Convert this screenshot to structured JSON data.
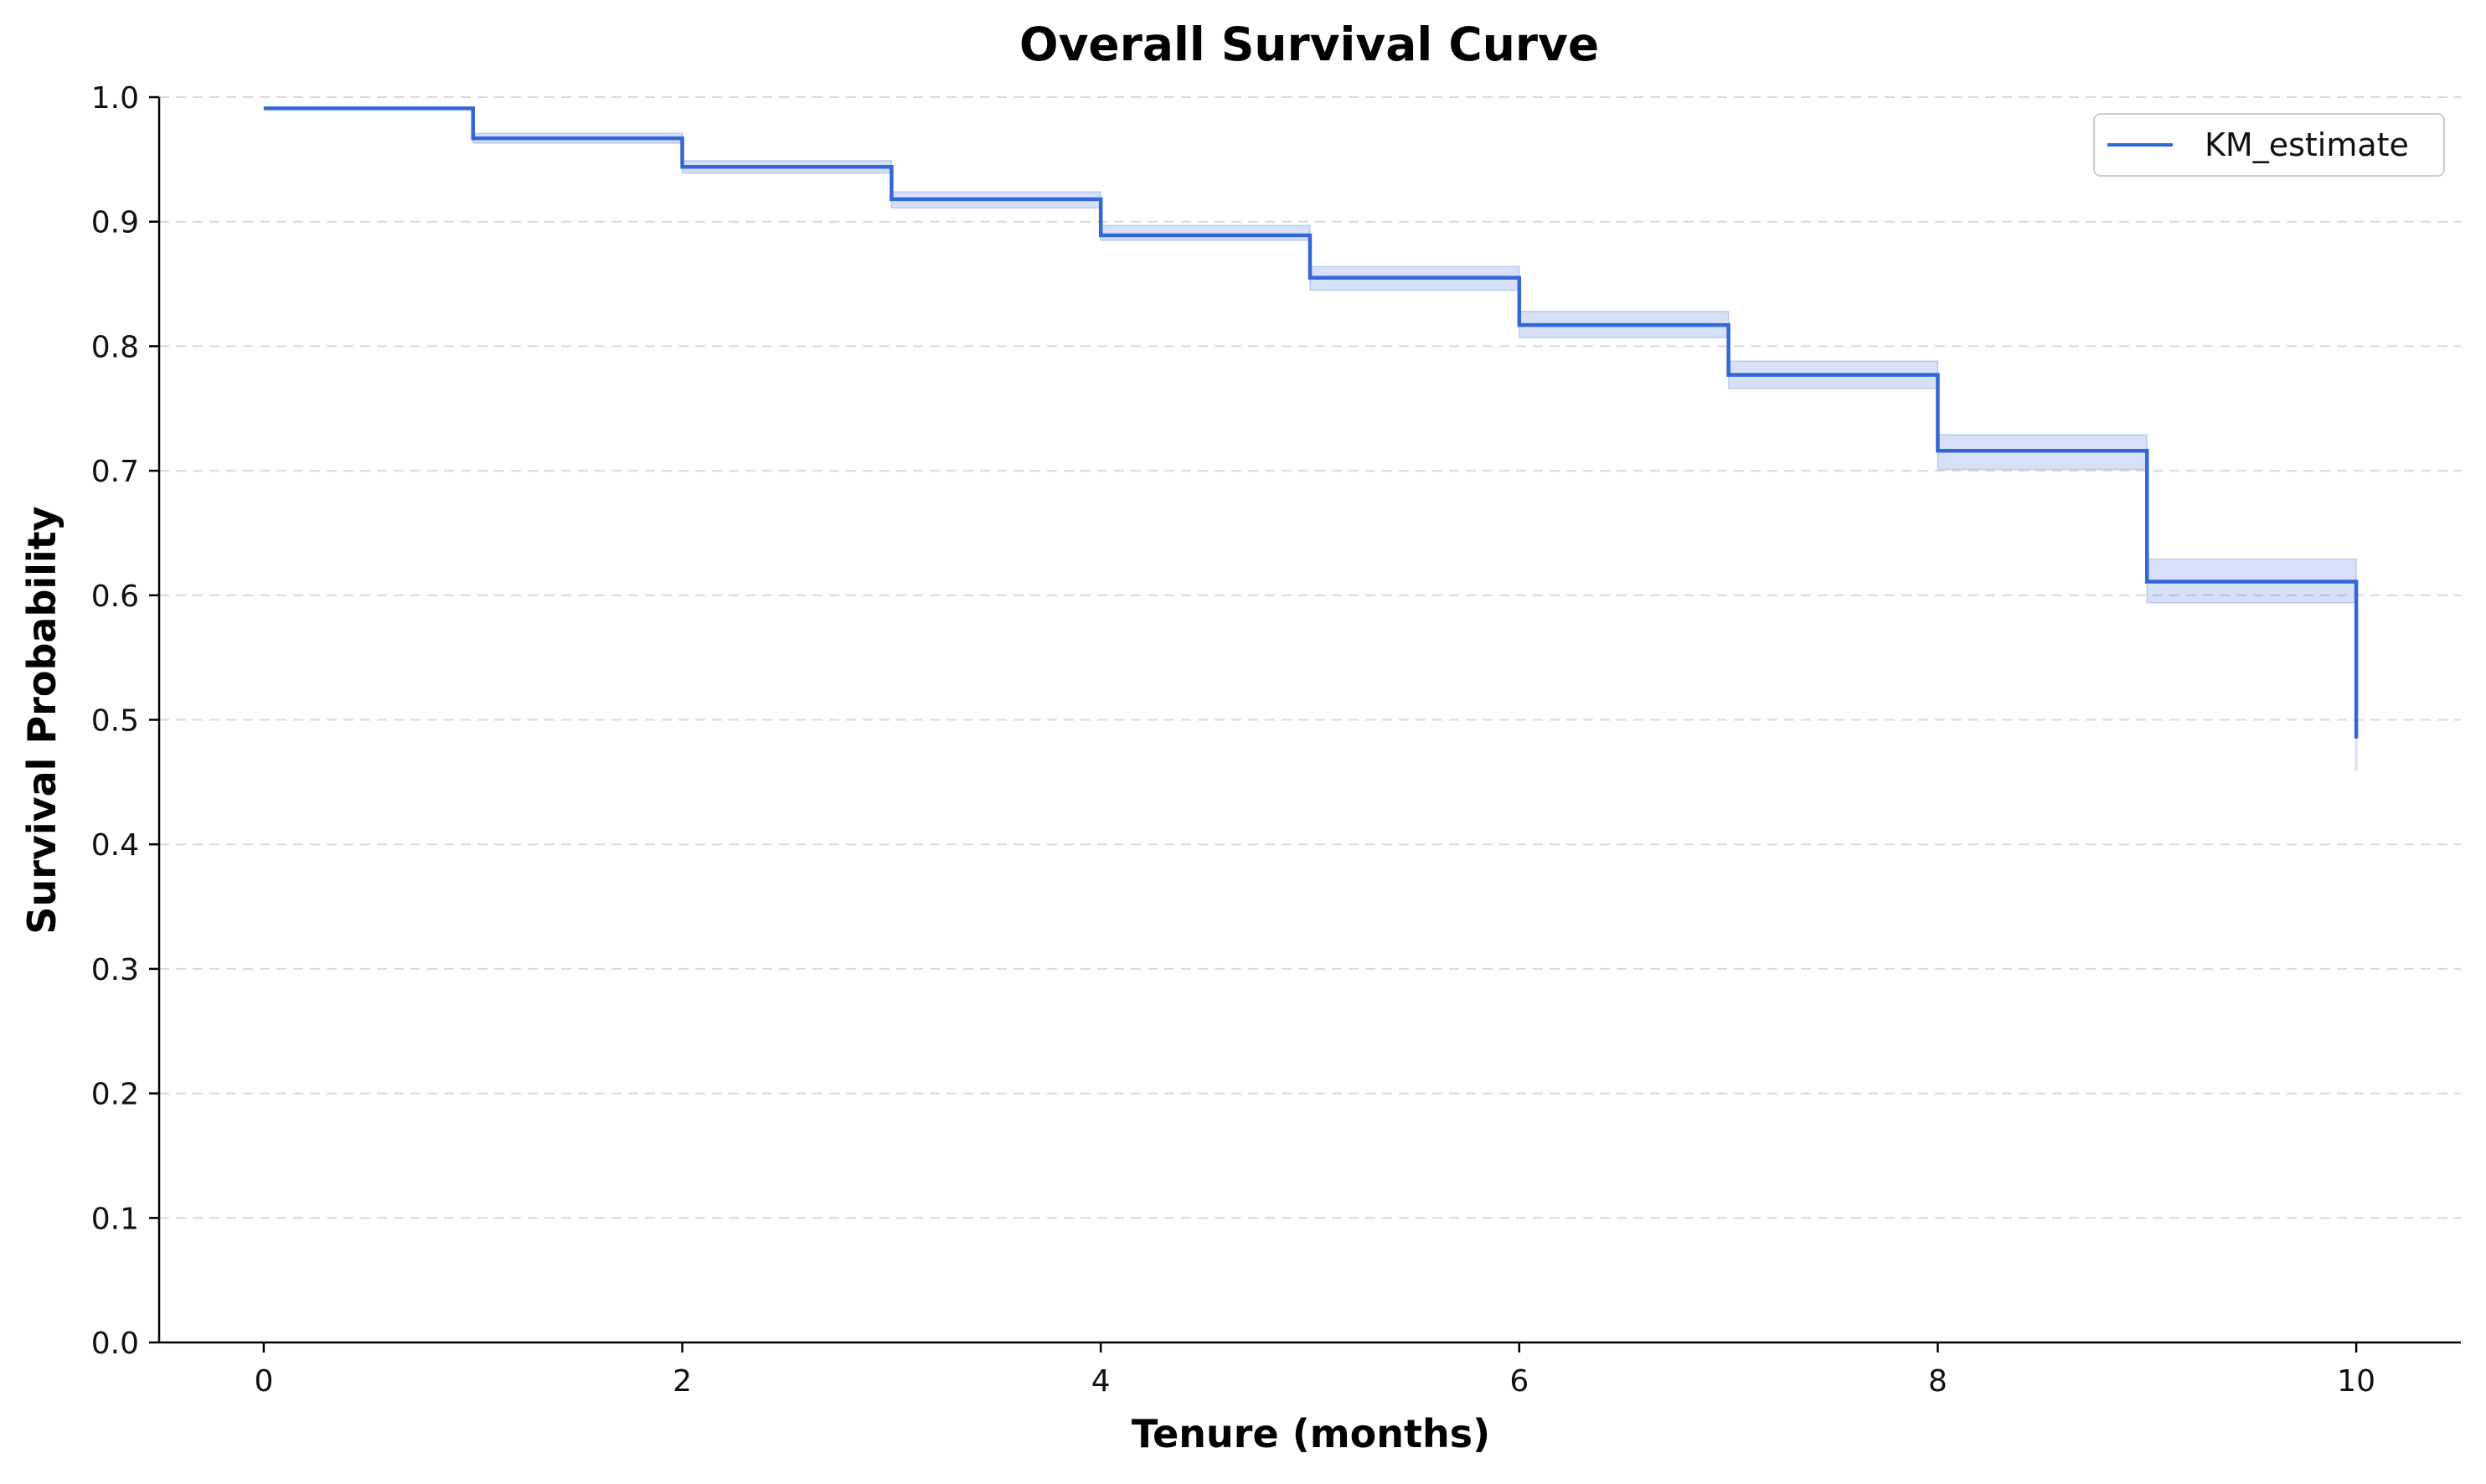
{
  "chart_data": {
    "type": "line",
    "title": "Overall Survival Curve",
    "xlabel": "Tenure (months)",
    "ylabel": "Survival Probability",
    "xlim": [
      -0.5,
      10.5
    ],
    "ylim": [
      0.0,
      1.0
    ],
    "x_ticks": [
      "0",
      "2",
      "4",
      "6",
      "8",
      "10"
    ],
    "y_ticks": [
      "0.0",
      "0.1",
      "0.2",
      "0.3",
      "0.4",
      "0.5",
      "0.6",
      "0.7",
      "0.8",
      "0.9",
      "1.0"
    ],
    "grid": "horizontal dashed",
    "legend": "top-right",
    "step": "post",
    "series": [
      {
        "name": "KM_estimate",
        "color": "#3366d6",
        "x": [
          0,
          1,
          2,
          3,
          4,
          5,
          6,
          7,
          8,
          9,
          10
        ],
        "values": [
          0.991,
          0.967,
          0.944,
          0.918,
          0.889,
          0.855,
          0.817,
          0.777,
          0.716,
          0.611,
          0.485
        ],
        "ci_lower": [
          0.991,
          0.963,
          0.939,
          0.911,
          0.885,
          0.845,
          0.807,
          0.766,
          0.701,
          0.594,
          0.459
        ],
        "ci_upper": [
          0.991,
          0.971,
          0.949,
          0.924,
          0.897,
          0.864,
          0.828,
          0.788,
          0.729,
          0.629,
          0.485
        ]
      }
    ]
  }
}
